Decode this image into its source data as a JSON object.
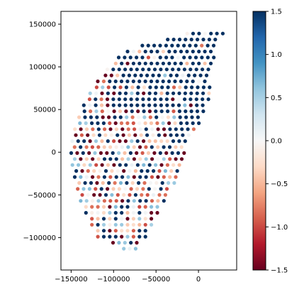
{
  "chart_data": {
    "type": "scatter",
    "title": "",
    "xlabel": "",
    "ylabel": "",
    "xlim": [
      -162000,
      45000
    ],
    "ylim": [
      -138000,
      165000
    ],
    "x_ticks": [
      -150000,
      -100000,
      -50000,
      0
    ],
    "x_tick_labels": [
      "−150000",
      "−100000",
      "−50000",
      "0"
    ],
    "y_ticks": [
      150000,
      100000,
      50000,
      0,
      -50000,
      -100000
    ],
    "y_tick_labels": [
      "150000",
      "100000",
      "50000",
      "0",
      "−50000",
      "−100000"
    ],
    "grid": false,
    "marker": "circle",
    "colormap": "RdBu",
    "colormap_stops": [
      "#67001f",
      "#b2182b",
      "#d6604d",
      "#f4a582",
      "#fddbc7",
      "#f7f7f7",
      "#d1e5f0",
      "#92c5de",
      "#4393c3",
      "#2166ac",
      "#053061"
    ],
    "color_range": [
      -1.5,
      1.5
    ],
    "colorbar": {
      "ticks": [
        1.5,
        1.0,
        0.5,
        0.0,
        -0.5,
        -1.0,
        -1.5
      ],
      "tick_labels": [
        "1.5",
        "1.0",
        "0.5",
        "0.0",
        "−0.5",
        "−1.0",
        "−1.5"
      ]
    },
    "grid_spacing": 7000,
    "region": {
      "description": "points lie on a regular grid inside a fan-shaped region",
      "y_rows": [
        -113000,
        142000
      ],
      "x_left_boundary": [
        [
          -113000,
          -88000
        ],
        [
          -100000,
          -118000
        ],
        [
          -80000,
          -128000
        ],
        [
          -60000,
          -138000
        ],
        [
          -40000,
          -143000
        ],
        [
          -20000,
          -148000
        ],
        [
          0,
          -150000
        ],
        [
          20000,
          -148000
        ],
        [
          40000,
          -141000
        ],
        [
          60000,
          -133000
        ],
        [
          80000,
          -121000
        ],
        [
          100000,
          -105000
        ],
        [
          120000,
          -85000
        ],
        [
          142000,
          -2000
        ]
      ],
      "x_right_boundary": [
        [
          -113000,
          -74000
        ],
        [
          -100000,
          -60000
        ],
        [
          -80000,
          -50000
        ],
        [
          -60000,
          -40000
        ],
        [
          -40000,
          -30000
        ],
        [
          -20000,
          -22000
        ],
        [
          0,
          -15000
        ],
        [
          20000,
          -10000
        ],
        [
          40000,
          6000
        ],
        [
          60000,
          12000
        ],
        [
          80000,
          14000
        ],
        [
          100000,
          16000
        ],
        [
          120000,
          20000
        ],
        [
          142000,
          32000
        ]
      ]
    },
    "values_note": "values in [-1.5, 1.5]; dark-blue solid block in upper right (values >= 1.5), mixed red/white/blue elsewhere"
  }
}
